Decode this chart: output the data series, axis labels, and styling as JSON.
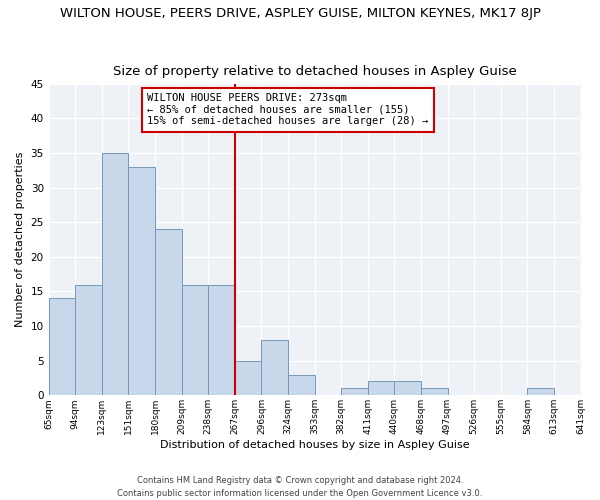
{
  "title": "WILTON HOUSE, PEERS DRIVE, ASPLEY GUISE, MILTON KEYNES, MK17 8JP",
  "subtitle": "Size of property relative to detached houses in Aspley Guise",
  "xlabel": "Distribution of detached houses by size in Aspley Guise",
  "ylabel": "Number of detached properties",
  "footer_line1": "Contains HM Land Registry data © Crown copyright and database right 2024.",
  "footer_line2": "Contains public sector information licensed under the Open Government Licence v3.0.",
  "bin_labels": [
    "65sqm",
    "94sqm",
    "123sqm",
    "151sqm",
    "180sqm",
    "209sqm",
    "238sqm",
    "267sqm",
    "296sqm",
    "324sqm",
    "353sqm",
    "382sqm",
    "411sqm",
    "440sqm",
    "468sqm",
    "497sqm",
    "526sqm",
    "555sqm",
    "584sqm",
    "613sqm",
    "641sqm"
  ],
  "bar_heights": [
    14,
    16,
    35,
    33,
    24,
    16,
    16,
    5,
    8,
    3,
    0,
    1,
    2,
    2,
    1,
    0,
    0,
    0,
    1,
    0
  ],
  "bar_color": "#c8d8ea",
  "bar_edge_color": "#7399bb",
  "vline_color": "#cc0000",
  "annotation_title": "WILTON HOUSE PEERS DRIVE: 273sqm",
  "annotation_line1": "← 85% of detached houses are smaller (155)",
  "annotation_line2": "15% of semi-detached houses are larger (28) →",
  "ylim": [
    0,
    45
  ],
  "yticks": [
    0,
    5,
    10,
    15,
    20,
    25,
    30,
    35,
    40,
    45
  ],
  "annotation_box_color": "#ffffff",
  "annotation_box_edge": "#cc0000",
  "bg_color": "#eef2f7",
  "title_fontsize": 9.5,
  "subtitle_fontsize": 9.5,
  "vline_bar_index": 7
}
